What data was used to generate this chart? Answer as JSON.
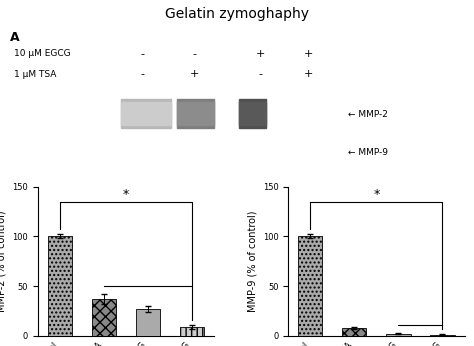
{
  "title": "Gelatin zymoghaphy",
  "panel_label": "A",
  "egcg_label": "10 μM EGCG",
  "tsa_label": "1 μM TSA",
  "signs_egcg": [
    "-",
    "-",
    "+",
    "+"
  ],
  "signs_tsa": [
    "-",
    "+",
    "-",
    "+"
  ],
  "mmp2_label": "MMP-2",
  "mmp9_label": "MMP-9",
  "bar_categories": [
    "control",
    "TSA",
    "EGCG",
    "TSA+EGCG"
  ],
  "mmp2_values": [
    100,
    37,
    27,
    9
  ],
  "mmp2_errors": [
    2,
    5,
    3,
    2
  ],
  "mmp9_values": [
    100,
    8,
    2,
    1
  ],
  "mmp9_errors": [
    2,
    1,
    0.5,
    0.5
  ],
  "ylabel_mmp2": "MMP-2 (% of control)",
  "ylabel_mmp9": "MMP-9 (% of control)",
  "ylim": [
    0,
    150
  ],
  "yticks": [
    0,
    50,
    100,
    150
  ],
  "hatch_patterns": [
    "....",
    "xxx",
    "===",
    "|||"
  ],
  "bar_facecolors": [
    "#aaaaaa",
    "#888888",
    "#aaaaaa",
    "#cccccc"
  ],
  "background_color": "#ffffff",
  "title_fontsize": 10,
  "tick_fontsize": 6,
  "axis_label_fontsize": 7
}
